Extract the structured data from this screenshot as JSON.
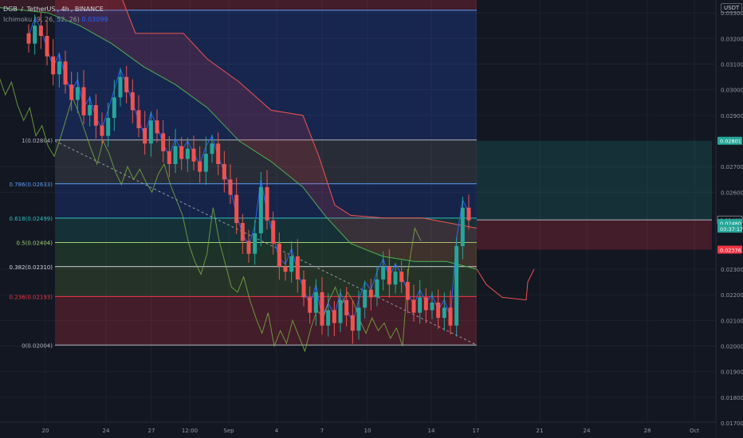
{
  "header": {
    "symbol_line": [
      "DGB",
      "/",
      "TetherUS",
      "4h",
      "BINANCE"
    ],
    "indicator_line": "Ichimoku (9, 26, 52, 26)",
    "indicator_value": "0.03099",
    "currency_badge": "USDT"
  },
  "chart_data": {
    "type": "candlestick",
    "y_scale": "linear",
    "ylim": [
      0.0166,
      0.0335
    ],
    "price_ticks": [
      "0.03300",
      "0.03200",
      "0.03100",
      "0.03000",
      "0.02900",
      "0.02700",
      "0.02600",
      "0.02300",
      "0.02200",
      "0.02100",
      "0.02000",
      "0.01900",
      "0.01800",
      "0.01700"
    ],
    "x_ticks": [
      "20",
      "24",
      "27",
      "12:00",
      "Sep",
      "4",
      "7",
      "10",
      "14",
      "17",
      "21",
      "24",
      "28",
      "Oct"
    ],
    "fib_levels": [
      {
        "label": "1(0.02804)",
        "price": 0.02804,
        "color": "#b2b5be"
      },
      {
        "label": "0.786(0.02633)",
        "price": 0.02633,
        "color": "#5b9cf6"
      },
      {
        "label": "0.618(0.02499)",
        "price": 0.02499,
        "color": "#2ebfbf"
      },
      {
        "label": "0.5(0.02404)",
        "price": 0.02404,
        "color": "#9fd373"
      },
      {
        "label": "0.382(0.02310)",
        "price": 0.0231,
        "color": "#d1d4dc"
      },
      {
        "label": "0.236(0.02193)",
        "price": 0.02193,
        "color": "#f23645"
      },
      {
        "label": "0(0.02004)",
        "price": 0.02004,
        "color": "#b2b5be"
      }
    ],
    "price_badges": [
      {
        "label": "0.02801",
        "price": 0.02801,
        "bg": "#26a69a",
        "fg": "#ffffff"
      },
      {
        "label": "0.02492",
        "price": 0.02492,
        "bg": "#131722",
        "fg": "#d1d4dc",
        "border": "#b2b5be"
      },
      {
        "label": "0.02480",
        "price": 0.0248,
        "bg": "#26a69a",
        "fg": "#ffffff"
      },
      {
        "label": "03:37:17",
        "price": 0.02458,
        "bg": "#26a69a",
        "fg": "#ffffff"
      },
      {
        "label": "0.02376",
        "price": 0.02376,
        "bg": "#f23645",
        "fg": "#ffffff"
      }
    ],
    "position": {
      "entry": 0.02492,
      "target": 0.02801,
      "stop": 0.02376
    },
    "candles_close": [
      0.0318,
      0.0325,
      0.0321,
      0.0313,
      0.0306,
      0.0311,
      0.0302,
      0.0296,
      0.0301,
      0.029,
      0.0294,
      0.0286,
      0.0282,
      0.0289,
      0.0297,
      0.0305,
      0.0299,
      0.0292,
      0.0285,
      0.0279,
      0.0288,
      0.0283,
      0.0276,
      0.0271,
      0.0278,
      0.0273,
      0.0277,
      0.0272,
      0.0268,
      0.0275,
      0.0279,
      0.0271,
      0.0265,
      0.0259,
      0.0248,
      0.0241,
      0.0236,
      0.0244,
      0.0262,
      0.0249,
      0.024,
      0.0231,
      0.0229,
      0.0235,
      0.0226,
      0.0219,
      0.0213,
      0.0221,
      0.0208,
      0.0214,
      0.0209,
      0.0218,
      0.0212,
      0.0206,
      0.0215,
      0.0222,
      0.0219,
      0.0226,
      0.0231,
      0.0224,
      0.0229,
      0.0225,
      0.0218,
      0.0213,
      0.0219,
      0.0214,
      0.0217,
      0.0211,
      0.0215,
      0.0208,
      0.0239,
      0.0254,
      0.0249
    ],
    "colors": {
      "up": "#26a69a",
      "down": "#ef5350",
      "background": "#131722",
      "grid": "#1e222d"
    }
  }
}
